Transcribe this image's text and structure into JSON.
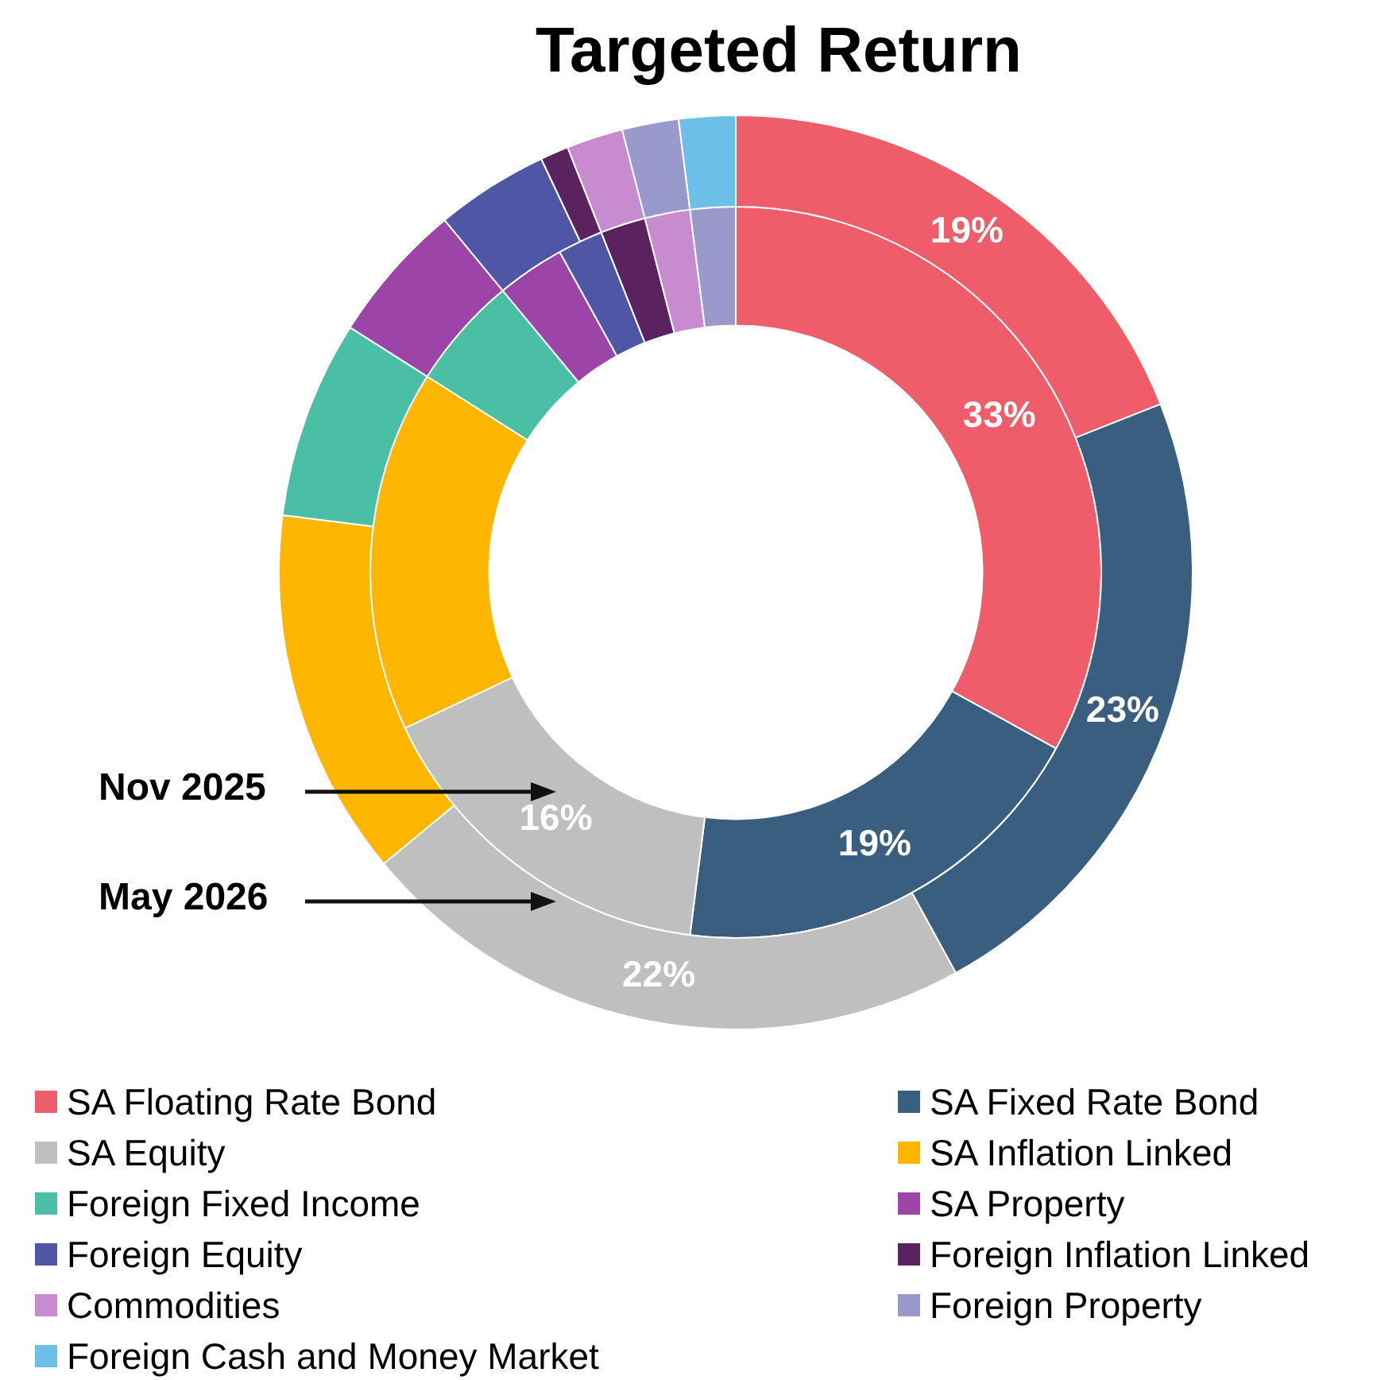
{
  "chart_data": {
    "type": "donut",
    "title": "Targeted Return",
    "categories": [
      "SA Floating Rate Bond",
      "SA Fixed Rate Bond",
      "SA Equity",
      "SA Inflation Linked",
      "Foreign Fixed Income",
      "SA Property",
      "Foreign Equity",
      "Foreign Inflation Linked",
      "Commodities",
      "Foreign Property",
      "Foreign Cash and Money Market"
    ],
    "colors": [
      "#f05d6a",
      "#3a5e80",
      "#bfbfbf",
      "#ffb600",
      "#4bbfa5",
      "#9c44a8",
      "#4f56a6",
      "#5a2360",
      "#c98bd0",
      "#9999cc",
      "#6bbfe8"
    ],
    "series": [
      {
        "name": "May 2026",
        "values": [
          19,
          23,
          22,
          13,
          7,
          5,
          4,
          1,
          2,
          2,
          2
        ],
        "value_labels": [
          "19%",
          "23%",
          "22%",
          null,
          null,
          null,
          null,
          null,
          null,
          null,
          null
        ]
      },
      {
        "name": "Nov 2025",
        "values": [
          33,
          19,
          16,
          16,
          5,
          3,
          2,
          2,
          2,
          2,
          null
        ],
        "value_labels": [
          "33%",
          "19%",
          "16%",
          null,
          null,
          null,
          null,
          null,
          null,
          null,
          null
        ]
      }
    ],
    "legend": "bottom"
  }
}
